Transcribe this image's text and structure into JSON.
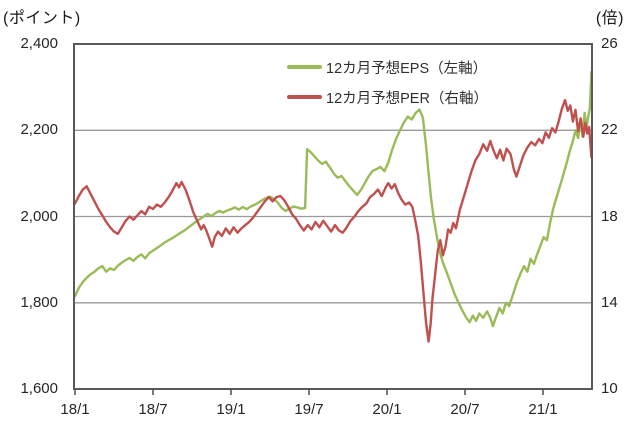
{
  "chart_data": {
    "type": "line",
    "title": "",
    "left_axis": {
      "unit_label": "(ポイント)",
      "min": 1600,
      "max": 2400,
      "tick_values": [
        2400,
        2200,
        2000,
        1800,
        1600
      ],
      "tick_labels": [
        "2,400",
        "2,200",
        "2,000",
        "1,800",
        "1,600"
      ]
    },
    "right_axis": {
      "unit_label": "(倍)",
      "min": 10,
      "max": 26,
      "tick_values": [
        26,
        22,
        18,
        14,
        10
      ],
      "tick_labels": [
        "26",
        "22",
        "18",
        "14",
        "10"
      ]
    },
    "x_axis": {
      "unit": "months since 2018-01 (label = yy/m)",
      "ticks": [
        {
          "m": 0,
          "label": "18/1"
        },
        {
          "m": 6,
          "label": "18/7"
        },
        {
          "m": 12,
          "label": "19/1"
        },
        {
          "m": 18,
          "label": "19/7"
        },
        {
          "m": 24,
          "label": "20/1"
        },
        {
          "m": 30,
          "label": "20/7"
        },
        {
          "m": 36,
          "label": "21/1"
        }
      ],
      "range_months": [
        0,
        39.8
      ]
    },
    "gridlines_left_values": [
      2200,
      2000,
      1800
    ],
    "grid": "horizontal-only",
    "legend_position": "top-center",
    "colors": {
      "axis": "#595959",
      "grid": "#9a9a9a",
      "text": "#262626"
    },
    "series": [
      {
        "name": "12カ月予想EPS（左軸）",
        "axis": "left",
        "color": "#9bbb59",
        "points": [
          [
            0,
            1815
          ],
          [
            0.3,
            1835
          ],
          [
            0.6,
            1848
          ],
          [
            0.9,
            1858
          ],
          [
            1.2,
            1866
          ],
          [
            1.5,
            1872
          ],
          [
            1.8,
            1880
          ],
          [
            2.1,
            1885
          ],
          [
            2.4,
            1872
          ],
          [
            2.7,
            1880
          ],
          [
            3.0,
            1876
          ],
          [
            3.3,
            1886
          ],
          [
            3.6,
            1893
          ],
          [
            3.9,
            1899
          ],
          [
            4.2,
            1904
          ],
          [
            4.5,
            1897
          ],
          [
            4.8,
            1906
          ],
          [
            5.1,
            1912
          ],
          [
            5.4,
            1903
          ],
          [
            5.7,
            1915
          ],
          [
            6.0,
            1921
          ],
          [
            6.3,
            1927
          ],
          [
            6.6,
            1933
          ],
          [
            6.9,
            1940
          ],
          [
            7.2,
            1945
          ],
          [
            7.5,
            1950
          ],
          [
            7.8,
            1956
          ],
          [
            8.1,
            1962
          ],
          [
            8.4,
            1967
          ],
          [
            8.7,
            1974
          ],
          [
            9.0,
            1981
          ],
          [
            9.3,
            1988
          ],
          [
            9.6,
            1994
          ],
          [
            9.9,
            2000
          ],
          [
            10.2,
            2006
          ],
          [
            10.5,
            2001
          ],
          [
            10.8,
            2008
          ],
          [
            11.1,
            2013
          ],
          [
            11.4,
            2009
          ],
          [
            11.7,
            2014
          ],
          [
            12.0,
            2017
          ],
          [
            12.3,
            2021
          ],
          [
            12.6,
            2016
          ],
          [
            12.9,
            2022
          ],
          [
            13.2,
            2017
          ],
          [
            13.5,
            2023
          ],
          [
            13.8,
            2027
          ],
          [
            14.1,
            2032
          ],
          [
            14.4,
            2038
          ],
          [
            14.7,
            2043
          ],
          [
            15.0,
            2046
          ],
          [
            15.3,
            2041
          ],
          [
            15.6,
            2032
          ],
          [
            15.9,
            2020
          ],
          [
            16.2,
            2013
          ],
          [
            16.5,
            2018
          ],
          [
            16.8,
            2023
          ],
          [
            17.1,
            2021
          ],
          [
            17.4,
            2018
          ],
          [
            17.7,
            2020
          ],
          [
            17.85,
            2156
          ],
          [
            18.1,
            2150
          ],
          [
            18.4,
            2140
          ],
          [
            18.7,
            2130
          ],
          [
            19.0,
            2122
          ],
          [
            19.3,
            2127
          ],
          [
            19.6,
            2114
          ],
          [
            19.9,
            2100
          ],
          [
            20.2,
            2090
          ],
          [
            20.5,
            2094
          ],
          [
            20.8,
            2082
          ],
          [
            21.1,
            2070
          ],
          [
            21.4,
            2060
          ],
          [
            21.7,
            2050
          ],
          [
            22.0,
            2062
          ],
          [
            22.3,
            2078
          ],
          [
            22.6,
            2094
          ],
          [
            22.9,
            2106
          ],
          [
            23.2,
            2110
          ],
          [
            23.5,
            2115
          ],
          [
            23.8,
            2105
          ],
          [
            24.1,
            2125
          ],
          [
            24.4,
            2155
          ],
          [
            24.7,
            2180
          ],
          [
            25.0,
            2200
          ],
          [
            25.3,
            2218
          ],
          [
            25.6,
            2232
          ],
          [
            25.9,
            2225
          ],
          [
            26.2,
            2240
          ],
          [
            26.5,
            2248
          ],
          [
            26.75,
            2230
          ],
          [
            27.0,
            2165
          ],
          [
            27.2,
            2100
          ],
          [
            27.4,
            2040
          ],
          [
            27.6,
            1995
          ],
          [
            27.8,
            1960
          ],
          [
            28.0,
            1925
          ],
          [
            28.3,
            1893
          ],
          [
            28.6,
            1870
          ],
          [
            28.9,
            1845
          ],
          [
            29.2,
            1820
          ],
          [
            29.5,
            1800
          ],
          [
            29.8,
            1782
          ],
          [
            30.1,
            1765
          ],
          [
            30.35,
            1755
          ],
          [
            30.6,
            1770
          ],
          [
            30.85,
            1758
          ],
          [
            31.1,
            1775
          ],
          [
            31.4,
            1765
          ],
          [
            31.7,
            1780
          ],
          [
            31.95,
            1765
          ],
          [
            32.15,
            1746
          ],
          [
            32.4,
            1768
          ],
          [
            32.65,
            1788
          ],
          [
            32.9,
            1775
          ],
          [
            33.15,
            1800
          ],
          [
            33.4,
            1792
          ],
          [
            33.7,
            1820
          ],
          [
            34.0,
            1848
          ],
          [
            34.3,
            1870
          ],
          [
            34.55,
            1885
          ],
          [
            34.8,
            1872
          ],
          [
            35.05,
            1902
          ],
          [
            35.3,
            1890
          ],
          [
            35.55,
            1912
          ],
          [
            35.8,
            1932
          ],
          [
            36.05,
            1952
          ],
          [
            36.3,
            1945
          ],
          [
            36.55,
            1985
          ],
          [
            36.8,
            2020
          ],
          [
            37.05,
            2045
          ],
          [
            37.3,
            2070
          ],
          [
            37.55,
            2095
          ],
          [
            37.8,
            2122
          ],
          [
            38.05,
            2150
          ],
          [
            38.3,
            2175
          ],
          [
            38.5,
            2200
          ],
          [
            38.7,
            2182
          ],
          [
            38.9,
            2220
          ],
          [
            39.05,
            2185
          ],
          [
            39.2,
            2240
          ],
          [
            39.35,
            2205
          ],
          [
            39.5,
            2235
          ],
          [
            39.6,
            2250
          ],
          [
            39.72,
            2335
          ]
        ]
      },
      {
        "name": "12カ月予想PER（右軸）",
        "axis": "right",
        "color": "#c0504d",
        "points": [
          [
            0,
            18.6
          ],
          [
            0.3,
            18.95
          ],
          [
            0.6,
            19.25
          ],
          [
            0.9,
            19.4
          ],
          [
            1.2,
            19.05
          ],
          [
            1.5,
            18.7
          ],
          [
            1.8,
            18.35
          ],
          [
            2.1,
            18.05
          ],
          [
            2.4,
            17.75
          ],
          [
            2.7,
            17.5
          ],
          [
            3.0,
            17.3
          ],
          [
            3.3,
            17.2
          ],
          [
            3.6,
            17.5
          ],
          [
            3.9,
            17.8
          ],
          [
            4.2,
            18.0
          ],
          [
            4.5,
            17.85
          ],
          [
            4.8,
            18.05
          ],
          [
            5.1,
            18.25
          ],
          [
            5.4,
            18.1
          ],
          [
            5.7,
            18.45
          ],
          [
            6.0,
            18.35
          ],
          [
            6.3,
            18.55
          ],
          [
            6.6,
            18.45
          ],
          [
            6.9,
            18.65
          ],
          [
            7.2,
            18.9
          ],
          [
            7.5,
            19.2
          ],
          [
            7.8,
            19.55
          ],
          [
            8.0,
            19.35
          ],
          [
            8.2,
            19.6
          ],
          [
            8.5,
            19.25
          ],
          [
            8.8,
            18.75
          ],
          [
            9.1,
            18.2
          ],
          [
            9.4,
            17.8
          ],
          [
            9.7,
            17.4
          ],
          [
            9.9,
            17.6
          ],
          [
            10.1,
            17.35
          ],
          [
            10.35,
            16.95
          ],
          [
            10.55,
            16.6
          ],
          [
            10.75,
            17.05
          ],
          [
            11.0,
            17.3
          ],
          [
            11.3,
            17.1
          ],
          [
            11.6,
            17.45
          ],
          [
            11.9,
            17.2
          ],
          [
            12.2,
            17.5
          ],
          [
            12.5,
            17.25
          ],
          [
            12.8,
            17.45
          ],
          [
            13.1,
            17.6
          ],
          [
            13.4,
            17.75
          ],
          [
            13.7,
            17.95
          ],
          [
            14.0,
            18.2
          ],
          [
            14.3,
            18.45
          ],
          [
            14.6,
            18.7
          ],
          [
            14.9,
            18.9
          ],
          [
            15.2,
            18.7
          ],
          [
            15.5,
            18.9
          ],
          [
            15.8,
            18.95
          ],
          [
            16.1,
            18.75
          ],
          [
            16.4,
            18.45
          ],
          [
            16.7,
            18.1
          ],
          [
            17.0,
            17.9
          ],
          [
            17.3,
            17.6
          ],
          [
            17.6,
            17.35
          ],
          [
            17.9,
            17.6
          ],
          [
            18.2,
            17.4
          ],
          [
            18.5,
            17.75
          ],
          [
            18.8,
            17.5
          ],
          [
            19.1,
            17.8
          ],
          [
            19.4,
            17.55
          ],
          [
            19.7,
            17.3
          ],
          [
            20.0,
            17.6
          ],
          [
            20.3,
            17.35
          ],
          [
            20.6,
            17.25
          ],
          [
            20.9,
            17.5
          ],
          [
            21.2,
            17.8
          ],
          [
            21.5,
            18.0
          ],
          [
            21.8,
            18.25
          ],
          [
            22.1,
            18.45
          ],
          [
            22.4,
            18.6
          ],
          [
            22.7,
            18.9
          ],
          [
            23.0,
            19.05
          ],
          [
            23.3,
            19.25
          ],
          [
            23.6,
            18.95
          ],
          [
            23.9,
            19.35
          ],
          [
            24.1,
            19.55
          ],
          [
            24.35,
            19.3
          ],
          [
            24.6,
            19.5
          ],
          [
            24.85,
            19.1
          ],
          [
            25.1,
            18.8
          ],
          [
            25.4,
            18.55
          ],
          [
            25.7,
            18.65
          ],
          [
            25.95,
            18.45
          ],
          [
            26.15,
            17.9
          ],
          [
            26.4,
            17.1
          ],
          [
            26.6,
            15.9
          ],
          [
            26.8,
            14.5
          ],
          [
            27.0,
            13.1
          ],
          [
            27.2,
            12.2
          ],
          [
            27.35,
            13.0
          ],
          [
            27.5,
            14.2
          ],
          [
            27.7,
            15.3
          ],
          [
            27.9,
            16.4
          ],
          [
            28.1,
            16.9
          ],
          [
            28.3,
            16.2
          ],
          [
            28.5,
            16.6
          ],
          [
            28.7,
            17.4
          ],
          [
            28.9,
            17.25
          ],
          [
            29.1,
            17.7
          ],
          [
            29.3,
            17.45
          ],
          [
            29.6,
            18.3
          ],
          [
            29.9,
            18.9
          ],
          [
            30.2,
            19.5
          ],
          [
            30.5,
            20.1
          ],
          [
            30.8,
            20.6
          ],
          [
            31.1,
            20.9
          ],
          [
            31.4,
            21.35
          ],
          [
            31.7,
            21.05
          ],
          [
            31.95,
            21.5
          ],
          [
            32.2,
            21.05
          ],
          [
            32.45,
            20.7
          ],
          [
            32.7,
            21.1
          ],
          [
            32.95,
            20.6
          ],
          [
            33.2,
            21.15
          ],
          [
            33.5,
            20.9
          ],
          [
            33.75,
            20.2
          ],
          [
            33.95,
            19.85
          ],
          [
            34.2,
            20.3
          ],
          [
            34.5,
            20.85
          ],
          [
            34.8,
            21.2
          ],
          [
            35.1,
            21.45
          ],
          [
            35.4,
            21.3
          ],
          [
            35.7,
            21.6
          ],
          [
            35.95,
            21.4
          ],
          [
            36.2,
            21.9
          ],
          [
            36.45,
            21.65
          ],
          [
            36.7,
            22.1
          ],
          [
            36.95,
            21.9
          ],
          [
            37.2,
            22.4
          ],
          [
            37.45,
            23.0
          ],
          [
            37.7,
            23.4
          ],
          [
            37.9,
            22.9
          ],
          [
            38.1,
            23.15
          ],
          [
            38.3,
            22.4
          ],
          [
            38.5,
            22.95
          ],
          [
            38.7,
            21.95
          ],
          [
            38.9,
            22.55
          ],
          [
            39.1,
            21.7
          ],
          [
            39.25,
            22.35
          ],
          [
            39.4,
            21.85
          ],
          [
            39.55,
            22.15
          ],
          [
            39.72,
            20.75
          ]
        ]
      }
    ]
  }
}
